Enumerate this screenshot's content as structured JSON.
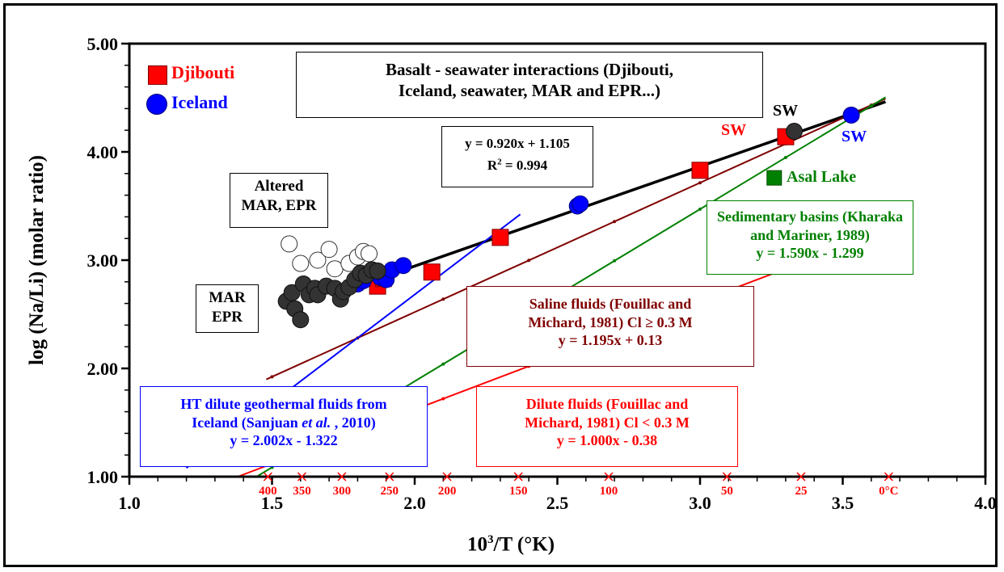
{
  "chart_data": {
    "type": "scatter",
    "title": "",
    "xlabel": "10³/T (°K)",
    "ylabel": "log (Na/Li) (molar ratio)",
    "xlim": [
      1.0,
      4.0
    ],
    "ylim": [
      1.0,
      5.0
    ],
    "x_ticks": [
      "1.0",
      "1.5",
      "2.0",
      "2.5",
      "3.0",
      "3.5",
      "4.0"
    ],
    "y_ticks": [
      "1.00",
      "2.00",
      "3.00",
      "4.00",
      "5.00"
    ],
    "temperature_ticks": [
      "400",
      "350",
      "300",
      "250",
      "200",
      "150",
      "100",
      "50",
      "25",
      "0°C"
    ],
    "temperature_values": [
      400,
      350,
      300,
      250,
      200,
      150,
      100,
      50,
      25,
      0
    ],
    "legend": [
      {
        "name": "Djibouti",
        "color": "#ff0000",
        "marker": "square"
      },
      {
        "name": "Iceland",
        "color": "#0000ff",
        "marker": "circle"
      }
    ],
    "series": [
      {
        "name": "Djibouti",
        "color": "#ff0000",
        "marker": "square",
        "points": [
          [
            1.87,
            2.76
          ],
          [
            1.89,
            2.83
          ],
          [
            2.06,
            2.89
          ],
          [
            2.3,
            3.21
          ],
          [
            3.0,
            3.83
          ],
          [
            3.3,
            4.14
          ]
        ]
      },
      {
        "name": "Iceland",
        "color": "#0000ff",
        "marker": "circle",
        "points": [
          [
            1.8,
            2.78
          ],
          [
            1.82,
            2.81
          ],
          [
            1.86,
            2.88
          ],
          [
            1.88,
            2.84
          ],
          [
            1.9,
            2.82
          ],
          [
            1.92,
            2.91
          ],
          [
            1.96,
            2.95
          ],
          [
            2.57,
            3.5
          ],
          [
            2.58,
            3.52
          ],
          [
            3.53,
            4.34
          ]
        ]
      },
      {
        "name": "Altered MAR, EPR",
        "color": "#ffffff",
        "marker": "circle",
        "points": [
          [
            1.56,
            3.15
          ],
          [
            1.6,
            2.97
          ],
          [
            1.66,
            3.0
          ],
          [
            1.7,
            3.1
          ],
          [
            1.72,
            2.92
          ],
          [
            1.77,
            2.97
          ],
          [
            1.8,
            3.03
          ],
          [
            1.82,
            3.08
          ],
          [
            1.84,
            3.06
          ]
        ]
      },
      {
        "name": "MAR EPR",
        "color": "#333333",
        "marker": "circle",
        "points": [
          [
            1.55,
            2.62
          ],
          [
            1.57,
            2.7
          ],
          [
            1.58,
            2.55
          ],
          [
            1.6,
            2.45
          ],
          [
            1.61,
            2.78
          ],
          [
            1.63,
            2.68
          ],
          [
            1.65,
            2.74
          ],
          [
            1.66,
            2.68
          ],
          [
            1.69,
            2.76
          ],
          [
            1.72,
            2.74
          ],
          [
            1.74,
            2.64
          ],
          [
            1.75,
            2.71
          ],
          [
            1.77,
            2.75
          ],
          [
            1.79,
            2.82
          ],
          [
            1.81,
            2.88
          ],
          [
            1.83,
            2.86
          ],
          [
            1.85,
            2.91
          ],
          [
            1.87,
            2.9
          ]
        ]
      },
      {
        "name": "SW",
        "color": "#333333",
        "marker": "circle",
        "points": [
          [
            3.33,
            4.19
          ]
        ]
      },
      {
        "name": "Asal Lake",
        "color": "#008000",
        "marker": "square",
        "points": [
          [
            3.26,
            3.76
          ]
        ]
      }
    ],
    "fits": [
      {
        "equation": "y = 0.920x + 1.105",
        "r2": "R² = 0.994",
        "color": "#000000",
        "x_range": [
          1.78,
          3.65
        ]
      },
      {
        "label": "Saline fluids (Fouillac and Michard, 1981) Cl ≥ 0.3 M",
        "equation": "y = 1.195x + 0.13",
        "color": "#800000",
        "x_range": [
          1.48,
          3.65
        ]
      },
      {
        "label": "Sedimentary basins (Kharaka and Mariner, 1989)",
        "equation": "y = 1.590x - 1.299",
        "color": "#008000",
        "x_range": [
          1.45,
          3.65
        ]
      },
      {
        "label": "Dilute fluids (Fouillac and Michard, 1981) Cl < 0.3 M",
        "equation": "y = 1.000x - 0.38",
        "color": "#ff0000",
        "x_range": [
          1.38,
          3.65
        ]
      },
      {
        "label": "HT dilute geothermal fluids from Iceland (Sanjuan et al. , 2010)",
        "equation": "y = 2.002x - 1.322",
        "color": "#0000ff",
        "x_range": [
          1.2,
          2.37
        ]
      }
    ]
  },
  "text": {
    "legend_djibouti": "Djibouti",
    "legend_iceland": "Iceland",
    "title_box_line1": "Basalt - seawater interactions (Djibouti,",
    "title_box_line2": "Iceland, seawater, MAR and EPR...)",
    "fit_eq": "y = 0.920x + 1.105",
    "fit_r2_base": "R",
    "fit_r2_sup": "2",
    "fit_r2_rest": " = 0.994",
    "altered_line1": "Altered",
    "altered_line2": "MAR, EPR",
    "mar_line1": "MAR",
    "mar_line2": "EPR",
    "sw_black": "SW",
    "sw_red": "SW",
    "sw_blue": "SW",
    "asal": "Asal Lake",
    "sed_line1": "Sedimentary basins (Kharaka",
    "sed_line2": "and Mariner, 1989)",
    "sed_eq": "y = 1.590x - 1.299",
    "saline_line1": "Saline fluids (Fouillac and",
    "saline_line2": "Michard, 1981) Cl ≥ 0.3 M",
    "saline_eq": "y = 1.195x + 0.13",
    "ht_line1": "HT dilute geothermal fluids from",
    "ht_line2a": "Iceland (Sanjuan ",
    "ht_line2b": "et al.",
    "ht_line2c": " , 2010)",
    "ht_eq": "y = 2.002x - 1.322",
    "dil_line1": "Dilute fluids (Fouillac and",
    "dil_line2": "Michard, 1981) Cl < 0.3 M",
    "dil_eq": "y = 1.000x - 0.38",
    "xlabel_base": "10",
    "xlabel_sup": "3",
    "xlabel_rest": "/T (°K)",
    "ylabel": "log (Na/Li) (molar ratio)"
  }
}
